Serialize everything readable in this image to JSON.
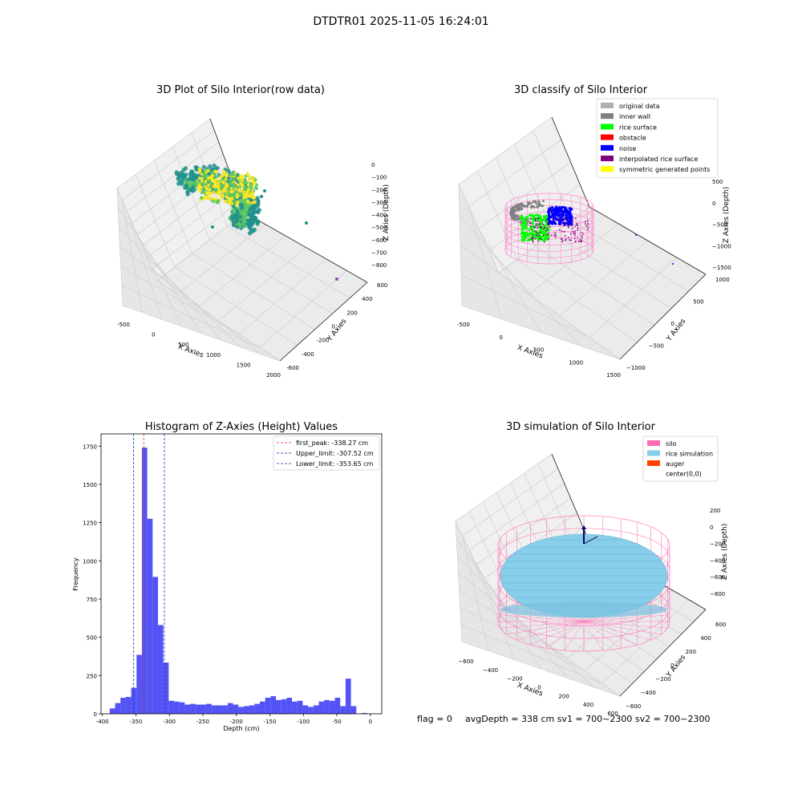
{
  "figure": {
    "suptitle": "DTDTR01 2025-11-05 16:24:01",
    "footer": {
      "flag": "flag = 0",
      "avg": "avgDepth = 338 cm  sv1 = 700~2300  sv2 = 700~2300"
    }
  },
  "chart_data": [
    {
      "type": "scatter",
      "title": "3D Plot of Silo Interior(row data)",
      "xlabel": "X Axies",
      "ylabel": "Y Axies",
      "zlabel": "Z Axies (Depth)",
      "x_ticks": [
        "-500",
        "0",
        "500",
        "1000",
        "1500",
        "2000"
      ],
      "y_ticks": [
        "-600",
        "-400",
        "-200",
        "0",
        "200",
        "400",
        "600"
      ],
      "z_ticks": [
        "0",
        "−100",
        "−200",
        "−300",
        "−400",
        "−500",
        "−600",
        "−700",
        "−800"
      ],
      "colormap": [
        "#fde725",
        "#5ec962",
        "#21918c"
      ]
    },
    {
      "type": "scatter",
      "title": "3D classify of Silo Interior",
      "xlabel": "X Axies",
      "ylabel": "Y Axies",
      "zlabel": "Z Axies (Depth)",
      "x_ticks": [
        "-500",
        "0",
        "500",
        "1000",
        "1500"
      ],
      "y_ticks": [
        "−1000",
        "−500",
        "0",
        "500",
        "1000"
      ],
      "z_ticks": [
        "500",
        "0",
        "−500",
        "−1000",
        "−1500"
      ],
      "legend": [
        {
          "label": "original data",
          "color": "#b0b0b0"
        },
        {
          "label": "inner wall",
          "color": "#808080"
        },
        {
          "label": "rice surface",
          "color": "#00ff00"
        },
        {
          "label": "obstacle",
          "color": "#ff0000"
        },
        {
          "label": "noise",
          "color": "#0000ff"
        },
        {
          "label": "interpolated rice surface",
          "color": "#800080"
        },
        {
          "label": "symmetric generated points",
          "color": "#ffff00"
        }
      ]
    },
    {
      "type": "bar",
      "title": "Histogram of Z-Axies (Height) Values",
      "xlabel": "Depth (cm)",
      "ylabel": "Frequency",
      "xlim": [
        -402,
        17
      ],
      "ylim": [
        0,
        1830
      ],
      "x_ticks": [
        -400,
        -350,
        -300,
        -250,
        -200,
        -150,
        -100,
        -50,
        0
      ],
      "y_ticks": [
        0,
        250,
        500,
        750,
        1000,
        1250,
        1500,
        1750
      ],
      "bin_width": 8,
      "bar_color": "#4a4af5",
      "bins": [
        [
          -385,
          35
        ],
        [
          -377,
          70
        ],
        [
          -369,
          105
        ],
        [
          -361,
          110
        ],
        [
          -353,
          170
        ],
        [
          -345,
          385
        ],
        [
          -337,
          1740
        ],
        [
          -329,
          1275
        ],
        [
          -321,
          895
        ],
        [
          -313,
          580
        ],
        [
          -305,
          335
        ],
        [
          -297,
          85
        ],
        [
          -289,
          80
        ],
        [
          -281,
          75
        ],
        [
          -273,
          60
        ],
        [
          -265,
          65
        ],
        [
          -257,
          60
        ],
        [
          -249,
          60
        ],
        [
          -241,
          65
        ],
        [
          -233,
          55
        ],
        [
          -225,
          55
        ],
        [
          -217,
          55
        ],
        [
          -209,
          70
        ],
        [
          -201,
          60
        ],
        [
          -193,
          45
        ],
        [
          -185,
          50
        ],
        [
          -177,
          55
        ],
        [
          -169,
          65
        ],
        [
          -161,
          80
        ],
        [
          -153,
          105
        ],
        [
          -145,
          115
        ],
        [
          -137,
          90
        ],
        [
          -129,
          95
        ],
        [
          -121,
          105
        ],
        [
          -113,
          80
        ],
        [
          -105,
          85
        ],
        [
          -97,
          55
        ],
        [
          -89,
          45
        ],
        [
          -81,
          55
        ],
        [
          -73,
          80
        ],
        [
          -65,
          90
        ],
        [
          -57,
          85
        ],
        [
          -49,
          105
        ],
        [
          -41,
          50
        ],
        [
          -33,
          230
        ],
        [
          -25,
          50
        ],
        [
          -9,
          5
        ]
      ],
      "vlines": [
        {
          "x": -338.27,
          "color": "#e03030",
          "label": "first_peak: -338.27 cm"
        },
        {
          "x": -307.52,
          "color": "#2020c0",
          "label": "Upper_limit: -307.52 cm"
        },
        {
          "x": -353.65,
          "color": "#2020c0",
          "label": "Lower_limit: -353.65 cm"
        }
      ]
    },
    {
      "type": "scatter",
      "title": "3D simulation of Silo Interior",
      "xlabel": "X Axies",
      "ylabel": "Y Axies",
      "zlabel": "Z Axies (Depth)",
      "x_ticks": [
        "−600",
        "−400",
        "−200",
        "0",
        "200",
        "400",
        "600"
      ],
      "y_ticks": [
        "−600",
        "−400",
        "−200",
        "0",
        "200",
        "400",
        "600"
      ],
      "z_ticks": [
        "200",
        "0",
        "−200",
        "−400",
        "−600",
        "−800"
      ],
      "legend": [
        {
          "label": "silo",
          "color": "#ff69b4"
        },
        {
          "label": "rice simulation",
          "color": "#87ceeb"
        },
        {
          "label": "auger",
          "color": "#ff4500"
        },
        {
          "label": "center(0,0)",
          "color": ""
        }
      ]
    }
  ]
}
